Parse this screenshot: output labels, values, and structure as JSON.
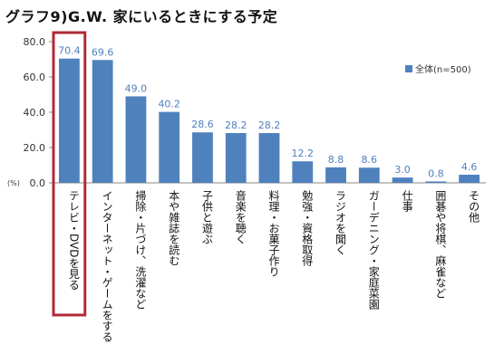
{
  "title": "グラフ9)G.W. 家にいるときにする予定",
  "chart_data": {
    "type": "bar",
    "title": "グラフ9)G.W. 家にいるときにする予定",
    "ylabel": "(%)",
    "xlabel": "",
    "ylim": [
      0,
      80
    ],
    "yticks": [
      "0.0",
      "20.0",
      "40.0",
      "60.0",
      "80.0"
    ],
    "grid": false,
    "legend_position": "top-right",
    "categories": [
      "テレビ・DVDを見る",
      "インターネット・ゲームをする",
      "掃除・片づけ、洗濯など",
      "本や雑誌を読む",
      "子供と遊ぶ",
      "音楽を聴く",
      "料理・お菓子作り",
      "勉強・資格取得",
      "ラジオを聞く",
      "ガーデニング・家庭菜園",
      "仕事",
      "囲碁や将棋、麻雀など",
      "その他"
    ],
    "series": [
      {
        "name": "全体(n=500)",
        "values": [
          70.4,
          69.6,
          49.0,
          40.2,
          28.6,
          28.2,
          28.2,
          12.2,
          8.8,
          8.6,
          3.0,
          0.8,
          4.6
        ],
        "labels": [
          "70.4",
          "69.6",
          "49.0",
          "40.2",
          "28.6",
          "28.2",
          "28.2",
          "12.2",
          "8.8",
          "8.6",
          "3.0",
          "0.8",
          "4.6"
        ]
      }
    ],
    "highlight_index": 0,
    "colors": {
      "bar": "#4f81bd",
      "highlight": "#b02a37",
      "axis": "#888888"
    }
  }
}
